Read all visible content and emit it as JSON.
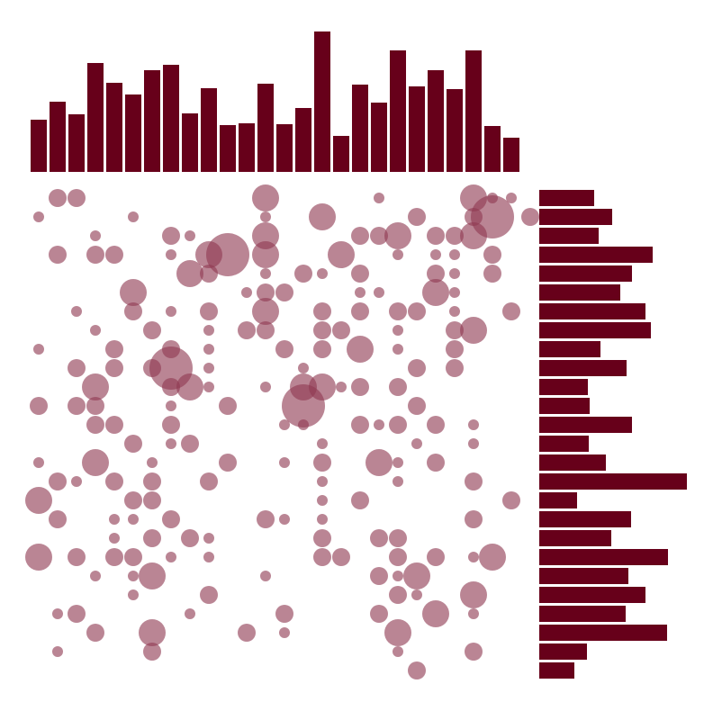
{
  "chart_data": {
    "type": "scatter",
    "title": "",
    "xlabel": "",
    "ylabel": "",
    "grid": false,
    "legend": "none",
    "colors": {
      "bar": "#67001a",
      "point": "#8f3a52"
    },
    "columns": 26,
    "rows": 26,
    "top_hist": {
      "type": "bar",
      "values": [
        58,
        78,
        64,
        121,
        99,
        86,
        113,
        119,
        65,
        93,
        52,
        54,
        98,
        53,
        71,
        156,
        40,
        97,
        77,
        135,
        95,
        113,
        92,
        135,
        51,
        38
      ]
    },
    "right_hist": {
      "type": "bar",
      "values": [
        61,
        81,
        66,
        126,
        103,
        90,
        118,
        124,
        68,
        97,
        54,
        56,
        103,
        55,
        74,
        164,
        42,
        102,
        80,
        143,
        99,
        118,
        96,
        142,
        53,
        39
      ]
    },
    "points": [
      [
        1,
        0,
        1
      ],
      [
        2,
        0,
        1
      ],
      [
        12,
        0,
        2
      ],
      [
        18,
        0,
        0
      ],
      [
        23,
        0,
        2
      ],
      [
        24,
        0,
        0
      ],
      [
        25,
        0,
        0
      ],
      [
        0,
        1,
        0
      ],
      [
        5,
        1,
        0
      ],
      [
        15,
        1,
        2
      ],
      [
        23,
        1,
        1
      ],
      [
        24,
        1,
        3
      ],
      [
        26,
        1,
        1
      ],
      [
        12,
        1,
        0
      ],
      [
        20,
        1,
        1
      ],
      [
        3,
        2,
        0
      ],
      [
        7,
        2,
        1
      ],
      [
        8,
        2,
        0
      ],
      [
        12,
        2,
        2
      ],
      [
        17,
        2,
        1
      ],
      [
        18,
        2,
        1
      ],
      [
        19,
        2,
        2
      ],
      [
        21,
        2,
        1
      ],
      [
        22,
        2,
        1
      ],
      [
        23,
        2,
        2
      ],
      [
        1,
        3,
        1
      ],
      [
        3,
        3,
        1
      ],
      [
        4,
        3,
        1
      ],
      [
        7,
        3,
        0
      ],
      [
        9,
        3,
        2
      ],
      [
        10,
        3,
        3
      ],
      [
        12,
        3,
        2
      ],
      [
        16,
        3,
        2
      ],
      [
        19,
        3,
        0
      ],
      [
        21,
        3,
        0
      ],
      [
        22,
        3,
        0
      ],
      [
        24,
        3,
        1
      ],
      [
        8,
        4,
        2
      ],
      [
        9,
        4,
        1
      ],
      [
        12,
        4,
        0
      ],
      [
        14,
        4,
        1
      ],
      [
        15,
        4,
        0
      ],
      [
        17,
        4,
        1
      ],
      [
        21,
        4,
        1
      ],
      [
        22,
        4,
        0
      ],
      [
        24,
        4,
        1
      ],
      [
        5,
        5,
        2
      ],
      [
        11,
        5,
        0
      ],
      [
        12,
        5,
        1
      ],
      [
        13,
        5,
        1
      ],
      [
        17,
        5,
        0
      ],
      [
        18,
        5,
        0
      ],
      [
        21,
        5,
        2
      ],
      [
        22,
        5,
        0
      ],
      [
        2,
        6,
        0
      ],
      [
        5,
        6,
        1
      ],
      [
        7,
        6,
        0
      ],
      [
        9,
        6,
        1
      ],
      [
        12,
        6,
        2
      ],
      [
        15,
        6,
        1
      ],
      [
        17,
        6,
        1
      ],
      [
        19,
        6,
        1
      ],
      [
        20,
        6,
        1
      ],
      [
        22,
        6,
        0
      ],
      [
        25,
        6,
        1
      ],
      [
        3,
        7,
        0
      ],
      [
        6,
        7,
        1
      ],
      [
        9,
        7,
        0
      ],
      [
        11,
        7,
        1
      ],
      [
        12,
        7,
        1
      ],
      [
        15,
        7,
        1
      ],
      [
        16,
        7,
        1
      ],
      [
        19,
        7,
        0
      ],
      [
        22,
        7,
        1
      ],
      [
        23,
        7,
        2
      ],
      [
        0,
        8,
        0
      ],
      [
        4,
        8,
        1
      ],
      [
        7,
        8,
        1
      ],
      [
        9,
        8,
        0
      ],
      [
        13,
        8,
        1
      ],
      [
        15,
        8,
        1
      ],
      [
        17,
        8,
        2
      ],
      [
        19,
        8,
        0
      ],
      [
        22,
        8,
        1
      ],
      [
        2,
        9,
        1
      ],
      [
        4,
        9,
        1
      ],
      [
        6,
        9,
        1
      ],
      [
        7,
        9,
        3
      ],
      [
        9,
        9,
        0
      ],
      [
        14,
        9,
        0
      ],
      [
        20,
        9,
        1
      ],
      [
        22,
        9,
        1
      ],
      [
        3,
        10,
        2
      ],
      [
        7,
        10,
        1
      ],
      [
        8,
        10,
        2
      ],
      [
        9,
        10,
        0
      ],
      [
        12,
        10,
        0
      ],
      [
        14,
        10,
        2
      ],
      [
        15,
        10,
        2
      ],
      [
        16,
        10,
        0
      ],
      [
        17,
        10,
        1
      ],
      [
        19,
        10,
        1
      ],
      [
        0,
        11,
        1
      ],
      [
        2,
        11,
        1
      ],
      [
        3,
        11,
        1
      ],
      [
        7,
        11,
        0
      ],
      [
        10,
        11,
        1
      ],
      [
        14,
        11,
        3
      ],
      [
        20,
        11,
        1
      ],
      [
        3,
        12,
        1
      ],
      [
        4,
        12,
        1
      ],
      [
        7,
        12,
        1
      ],
      [
        13,
        12,
        0
      ],
      [
        14,
        12,
        0
      ],
      [
        17,
        12,
        1
      ],
      [
        18,
        12,
        0
      ],
      [
        19,
        12,
        1
      ],
      [
        21,
        12,
        1
      ],
      [
        23,
        12,
        0
      ],
      [
        5,
        13,
        1
      ],
      [
        7,
        13,
        0
      ],
      [
        8,
        13,
        1
      ],
      [
        15,
        13,
        0
      ],
      [
        20,
        13,
        0
      ],
      [
        23,
        13,
        0
      ],
      [
        0,
        14,
        0
      ],
      [
        3,
        14,
        2
      ],
      [
        6,
        14,
        0
      ],
      [
        10,
        14,
        1
      ],
      [
        13,
        14,
        0
      ],
      [
        15,
        14,
        1
      ],
      [
        18,
        14,
        2
      ],
      [
        19,
        14,
        0
      ],
      [
        21,
        14,
        1
      ],
      [
        1,
        15,
        1
      ],
      [
        2,
        15,
        0
      ],
      [
        4,
        15,
        1
      ],
      [
        6,
        15,
        1
      ],
      [
        9,
        15,
        1
      ],
      [
        15,
        15,
        0
      ],
      [
        19,
        15,
        0
      ],
      [
        23,
        15,
        1
      ],
      [
        0,
        16,
        2
      ],
      [
        5,
        16,
        1
      ],
      [
        6,
        16,
        1
      ],
      [
        15,
        16,
        0
      ],
      [
        17,
        16,
        1
      ],
      [
        25,
        16,
        1
      ],
      [
        1,
        17,
        1
      ],
      [
        4,
        17,
        0
      ],
      [
        5,
        17,
        0
      ],
      [
        7,
        17,
        1
      ],
      [
        12,
        17,
        1
      ],
      [
        13,
        17,
        0
      ],
      [
        15,
        17,
        0
      ],
      [
        23,
        17,
        1
      ],
      [
        4,
        18,
        0
      ],
      [
        6,
        18,
        1
      ],
      [
        8,
        18,
        1
      ],
      [
        9,
        18,
        0
      ],
      [
        15,
        18,
        1
      ],
      [
        18,
        18,
        1
      ],
      [
        19,
        18,
        1
      ],
      [
        0,
        19,
        2
      ],
      [
        2,
        19,
        1
      ],
      [
        4,
        19,
        1
      ],
      [
        5,
        19,
        1
      ],
      [
        7,
        19,
        0
      ],
      [
        9,
        19,
        0
      ],
      [
        15,
        19,
        1
      ],
      [
        16,
        19,
        1
      ],
      [
        19,
        19,
        1
      ],
      [
        21,
        19,
        1
      ],
      [
        23,
        19,
        0
      ],
      [
        24,
        19,
        2
      ],
      [
        3,
        20,
        0
      ],
      [
        5,
        20,
        0
      ],
      [
        6,
        20,
        2
      ],
      [
        12,
        20,
        0
      ],
      [
        18,
        20,
        1
      ],
      [
        19,
        20,
        0
      ],
      [
        20,
        20,
        2
      ],
      [
        5,
        21,
        0
      ],
      [
        9,
        21,
        1
      ],
      [
        19,
        21,
        1
      ],
      [
        20,
        21,
        0
      ],
      [
        23,
        21,
        2
      ],
      [
        1,
        22,
        0
      ],
      [
        2,
        22,
        1
      ],
      [
        8,
        22,
        0
      ],
      [
        13,
        22,
        1
      ],
      [
        18,
        22,
        1
      ],
      [
        21,
        22,
        2
      ],
      [
        23,
        22,
        0
      ],
      [
        3,
        23,
        1
      ],
      [
        6,
        23,
        2
      ],
      [
        11,
        23,
        1
      ],
      [
        13,
        23,
        0
      ],
      [
        19,
        23,
        2
      ],
      [
        1,
        24,
        0
      ],
      [
        6,
        24,
        1
      ],
      [
        19,
        24,
        0
      ],
      [
        23,
        24,
        1
      ],
      [
        20,
        25,
        1
      ]
    ]
  }
}
